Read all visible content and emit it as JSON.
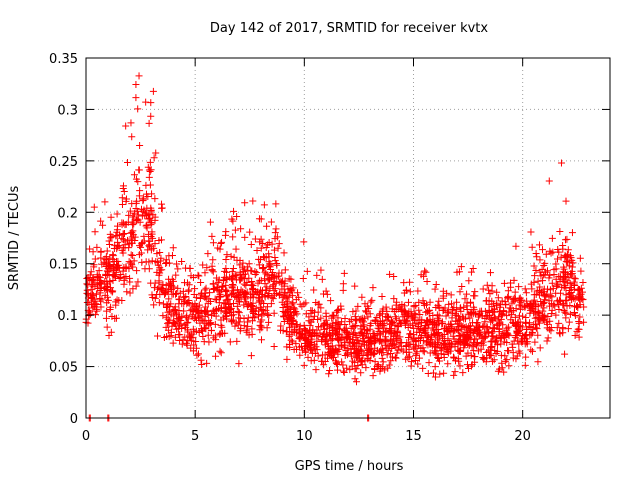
{
  "chart_data": {
    "type": "scatter",
    "title": "Day 142 of 2017, SRMTID for receiver kvtx",
    "xlabel": "GPS time / hours",
    "ylabel": "SRMTID / TECUs",
    "xlim": [
      0,
      24
    ],
    "ylim": [
      0,
      0.35
    ],
    "xticks": [
      0,
      5,
      10,
      15,
      20
    ],
    "xtick_labels": [
      "0",
      "5",
      "10",
      "15",
      "20"
    ],
    "yticks": [
      0,
      0.05,
      0.1,
      0.15,
      0.2,
      0.25,
      0.3,
      0.35
    ],
    "ytick_labels": [
      "0",
      "0.05",
      "0.1",
      "0.15",
      "0.2",
      "0.25",
      "0.3",
      "0.35"
    ],
    "grid": true,
    "marker": "+",
    "series": [
      {
        "name": "SRMTID",
        "color": "#ff0000",
        "profile": [
          [
            0.0,
            0.11,
            0.025,
            0.04
          ],
          [
            0.5,
            0.13,
            0.03,
            0.06
          ],
          [
            1.0,
            0.13,
            0.035,
            0.07
          ],
          [
            1.5,
            0.15,
            0.04,
            0.09
          ],
          [
            2.0,
            0.17,
            0.045,
            0.12
          ],
          [
            2.5,
            0.19,
            0.05,
            0.16
          ],
          [
            3.0,
            0.18,
            0.05,
            0.15
          ],
          [
            3.5,
            0.12,
            0.035,
            0.08
          ],
          [
            4.0,
            0.105,
            0.03,
            0.05
          ],
          [
            5.0,
            0.095,
            0.03,
            0.06
          ],
          [
            6.0,
            0.11,
            0.035,
            0.09
          ],
          [
            7.0,
            0.115,
            0.035,
            0.09
          ],
          [
            8.0,
            0.12,
            0.035,
            0.09
          ],
          [
            8.7,
            0.14,
            0.04,
            0.1
          ],
          [
            9.3,
            0.095,
            0.03,
            0.06
          ],
          [
            10.0,
            0.08,
            0.025,
            0.05
          ],
          [
            11.0,
            0.08,
            0.025,
            0.05
          ],
          [
            12.0,
            0.075,
            0.025,
            0.05
          ],
          [
            13.0,
            0.075,
            0.025,
            0.05
          ],
          [
            14.0,
            0.08,
            0.025,
            0.05
          ],
          [
            15.0,
            0.085,
            0.03,
            0.05
          ],
          [
            16.0,
            0.08,
            0.025,
            0.05
          ],
          [
            17.0,
            0.08,
            0.025,
            0.05
          ],
          [
            18.0,
            0.085,
            0.03,
            0.06
          ],
          [
            19.0,
            0.09,
            0.03,
            0.06
          ],
          [
            20.0,
            0.09,
            0.03,
            0.07
          ],
          [
            21.0,
            0.11,
            0.035,
            0.08
          ],
          [
            21.8,
            0.13,
            0.04,
            0.09
          ],
          [
            22.3,
            0.125,
            0.035,
            0.07
          ],
          [
            22.8,
            0.105,
            0.03,
            0.05
          ]
        ],
        "n_points": 2600,
        "x_range": [
          0.0,
          22.8
        ],
        "zero_points": [
          0.15,
          1.0,
          12.9
        ]
      }
    ]
  }
}
